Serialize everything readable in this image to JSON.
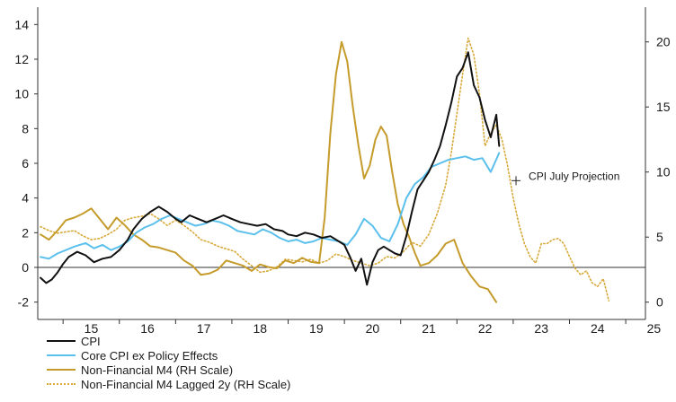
{
  "chart_data": {
    "type": "line",
    "title": "",
    "xlabel": "",
    "ylabel": "",
    "y_left_ticks": [
      "-2",
      "0",
      "2",
      "4",
      "6",
      "8",
      "10",
      "12",
      "14"
    ],
    "y_left_lim": [
      -3,
      15
    ],
    "y_right_ticks": [
      "0",
      "5",
      "10",
      "15",
      "20"
    ],
    "y_right_lim": [
      -1.33,
      22.67
    ],
    "x_ticks": [
      "15",
      "16",
      "17",
      "18",
      "19",
      "20",
      "21",
      "22",
      "23",
      "24",
      "25"
    ],
    "x_lim": [
      2014.55,
      2025.35
    ],
    "grid": false,
    "legend_position": "bottom-left",
    "colors": {
      "cpi": "#111111",
      "core": "#5bc0eb",
      "m4": "#c59b2b",
      "m4_lagged": "#d8a93a",
      "axis": "#333333"
    },
    "annotation": {
      "label": "CPI July Projection",
      "x": 2023.05,
      "y": 5.0
    },
    "series": [
      {
        "name": "CPI",
        "axis": "left",
        "x": [
          2014.6,
          2014.7,
          2014.8,
          2014.9,
          2015.0,
          2015.1,
          2015.25,
          2015.4,
          2015.55,
          2015.7,
          2015.85,
          2016.0,
          2016.15,
          2016.25,
          2016.4,
          2016.55,
          2016.7,
          2016.85,
          2017.0,
          2017.1,
          2017.25,
          2017.4,
          2017.55,
          2017.7,
          2017.85,
          2018.0,
          2018.15,
          2018.3,
          2018.45,
          2018.6,
          2018.75,
          2018.9,
          2019.0,
          2019.15,
          2019.3,
          2019.45,
          2019.6,
          2019.75,
          2019.9,
          2020.0,
          2020.1,
          2020.2,
          2020.3,
          2020.4,
          2020.5,
          2020.6,
          2020.7,
          2020.8,
          2020.9,
          2021.0,
          2021.1,
          2021.2,
          2021.3,
          2021.4,
          2021.5,
          2021.6,
          2021.7,
          2021.8,
          2021.9,
          2022.0,
          2022.1,
          2022.2,
          2022.3,
          2022.4,
          2022.5,
          2022.6,
          2022.7,
          2022.75
        ],
        "values": [
          -0.6,
          -0.9,
          -0.7,
          -0.3,
          0.2,
          0.6,
          0.9,
          0.7,
          0.3,
          0.5,
          0.6,
          1.0,
          1.6,
          2.2,
          2.8,
          3.2,
          3.5,
          3.2,
          2.8,
          2.6,
          3.0,
          2.8,
          2.6,
          2.8,
          3.0,
          2.8,
          2.6,
          2.5,
          2.4,
          2.5,
          2.2,
          2.1,
          1.9,
          1.8,
          2.0,
          1.9,
          1.7,
          1.8,
          1.5,
          1.3,
          0.6,
          -0.2,
          0.5,
          -1.0,
          0.3,
          1.0,
          1.2,
          1.0,
          0.8,
          0.7,
          1.8,
          3.2,
          4.5,
          5.0,
          5.5,
          6.2,
          7.0,
          8.2,
          9.5,
          11.0,
          11.5,
          12.4,
          10.5,
          9.8,
          8.5,
          7.5,
          8.8,
          7.0
        ]
      },
      {
        "name": "Core CPI ex Policy Effects",
        "axis": "left",
        "x": [
          2014.6,
          2014.75,
          2014.9,
          2015.05,
          2015.2,
          2015.4,
          2015.55,
          2015.7,
          2015.85,
          2016.0,
          2016.15,
          2016.3,
          2016.45,
          2016.6,
          2016.75,
          2016.9,
          2017.05,
          2017.2,
          2017.35,
          2017.5,
          2017.65,
          2017.8,
          2017.95,
          2018.1,
          2018.25,
          2018.4,
          2018.55,
          2018.7,
          2018.85,
          2019.0,
          2019.15,
          2019.3,
          2019.45,
          2019.6,
          2019.75,
          2019.9,
          2020.05,
          2020.2,
          2020.35,
          2020.5,
          2020.65,
          2020.8,
          2020.95,
          2021.1,
          2021.25,
          2021.4,
          2021.55,
          2021.7,
          2021.85,
          2022.0,
          2022.15,
          2022.3,
          2022.45,
          2022.6,
          2022.75
        ],
        "values": [
          0.6,
          0.5,
          0.8,
          1.0,
          1.2,
          1.4,
          1.1,
          1.3,
          1.0,
          1.2,
          1.5,
          2.0,
          2.3,
          2.5,
          2.8,
          3.0,
          2.8,
          2.6,
          2.4,
          2.5,
          2.7,
          2.6,
          2.4,
          2.1,
          2.0,
          1.9,
          2.2,
          2.0,
          1.7,
          1.5,
          1.6,
          1.4,
          1.5,
          1.7,
          1.6,
          1.5,
          1.3,
          1.9,
          2.8,
          2.4,
          1.7,
          1.5,
          2.5,
          4.0,
          4.8,
          5.2,
          5.8,
          6.0,
          6.2,
          6.3,
          6.4,
          6.2,
          6.3,
          5.5,
          6.6
        ]
      },
      {
        "name": "Non-Financial M4 (RH Scale)",
        "axis": "right",
        "x": [
          2014.6,
          2014.75,
          2014.9,
          2015.05,
          2015.2,
          2015.35,
          2015.5,
          2015.65,
          2015.8,
          2015.95,
          2016.1,
          2016.25,
          2016.4,
          2016.55,
          2016.7,
          2016.85,
          2017.0,
          2017.15,
          2017.3,
          2017.45,
          2017.6,
          2017.75,
          2017.9,
          2018.05,
          2018.2,
          2018.35,
          2018.5,
          2018.65,
          2018.8,
          2018.95,
          2019.1,
          2019.25,
          2019.4,
          2019.55,
          2019.65,
          2019.75,
          2019.85,
          2019.95,
          2020.05,
          2020.15,
          2020.25,
          2020.35,
          2020.45,
          2020.55,
          2020.65,
          2020.75,
          2020.85,
          2020.95,
          2021.05,
          2021.15,
          2021.25,
          2021.35,
          2021.5,
          2021.65,
          2021.8,
          2021.95,
          2022.1,
          2022.25,
          2022.4,
          2022.55,
          2022.7
        ],
        "values": [
          5.2,
          4.8,
          5.5,
          6.3,
          6.5,
          6.8,
          7.2,
          6.4,
          5.6,
          6.5,
          5.9,
          5.2,
          4.8,
          4.3,
          4.2,
          4.0,
          3.8,
          3.2,
          2.8,
          2.1,
          2.2,
          2.5,
          3.2,
          3.0,
          2.8,
          2.4,
          2.9,
          2.7,
          2.6,
          3.2,
          3.0,
          3.4,
          3.1,
          3.0,
          6.5,
          13.0,
          17.5,
          20.0,
          18.5,
          15.0,
          12.0,
          9.5,
          10.5,
          12.5,
          13.5,
          12.8,
          10.0,
          7.5,
          6.0,
          5.0,
          3.8,
          2.8,
          3.0,
          3.6,
          4.5,
          4.8,
          3.0,
          2.0,
          1.2,
          1.0,
          0.0
        ]
      },
      {
        "name": "Non-Financial M4 Lagged 2y (RH Scale)",
        "axis": "right",
        "x": [
          2014.6,
          2014.75,
          2014.9,
          2015.05,
          2015.2,
          2015.35,
          2015.5,
          2015.65,
          2015.8,
          2015.95,
          2016.1,
          2016.25,
          2016.4,
          2016.55,
          2016.7,
          2016.85,
          2017.0,
          2017.15,
          2017.3,
          2017.45,
          2017.6,
          2017.75,
          2017.9,
          2018.05,
          2018.2,
          2018.35,
          2018.5,
          2018.65,
          2018.8,
          2018.95,
          2019.1,
          2019.25,
          2019.4,
          2019.55,
          2019.7,
          2019.85,
          2020.0,
          2020.15,
          2020.3,
          2020.45,
          2020.6,
          2020.75,
          2020.9,
          2021.05,
          2021.2,
          2021.35,
          2021.5,
          2021.65,
          2021.8,
          2021.9,
          2022.0,
          2022.1,
          2022.2,
          2022.3,
          2022.4,
          2022.5,
          2022.6,
          2022.7,
          2022.8,
          2022.9,
          2023.0,
          2023.1,
          2023.2,
          2023.3,
          2023.4,
          2023.5,
          2023.6,
          2023.7,
          2023.8,
          2023.9,
          2024.0,
          2024.1,
          2024.2,
          2024.3,
          2024.4,
          2024.5,
          2024.6,
          2024.7
        ],
        "values": [
          5.8,
          5.5,
          5.3,
          5.4,
          5.5,
          5.1,
          4.8,
          4.9,
          5.2,
          5.6,
          6.3,
          6.5,
          6.6,
          6.8,
          6.4,
          5.9,
          6.3,
          5.9,
          5.4,
          4.8,
          4.6,
          4.3,
          4.1,
          3.9,
          3.3,
          2.8,
          2.3,
          2.4,
          2.7,
          3.3,
          3.2,
          3.1,
          3.3,
          3.0,
          3.2,
          3.7,
          3.5,
          3.2,
          3.0,
          2.8,
          3.0,
          3.5,
          3.4,
          3.9,
          4.6,
          4.3,
          5.2,
          6.8,
          9.0,
          11.5,
          14.5,
          17.5,
          20.3,
          19.0,
          16.0,
          12.0,
          13.0,
          13.6,
          12.5,
          10.5,
          8.0,
          6.0,
          4.5,
          3.5,
          3.0,
          4.5,
          4.5,
          4.8,
          4.9,
          4.5,
          3.5,
          2.6,
          2.1,
          2.4,
          1.5,
          1.2,
          1.8,
          0.1
        ]
      }
    ]
  },
  "legend": {
    "items": [
      {
        "label": "CPI",
        "color": "#111111",
        "style": "solid"
      },
      {
        "label": "Core CPI ex Policy Effects",
        "color": "#5bc0eb",
        "style": "solid"
      },
      {
        "label": "Non-Financial M4 (RH Scale)",
        "color": "#c59b2b",
        "style": "solid"
      },
      {
        "label": "Non-Financial M4 Lagged 2y (RH Scale)",
        "color": "#d8a93a",
        "style": "dotted"
      }
    ]
  }
}
